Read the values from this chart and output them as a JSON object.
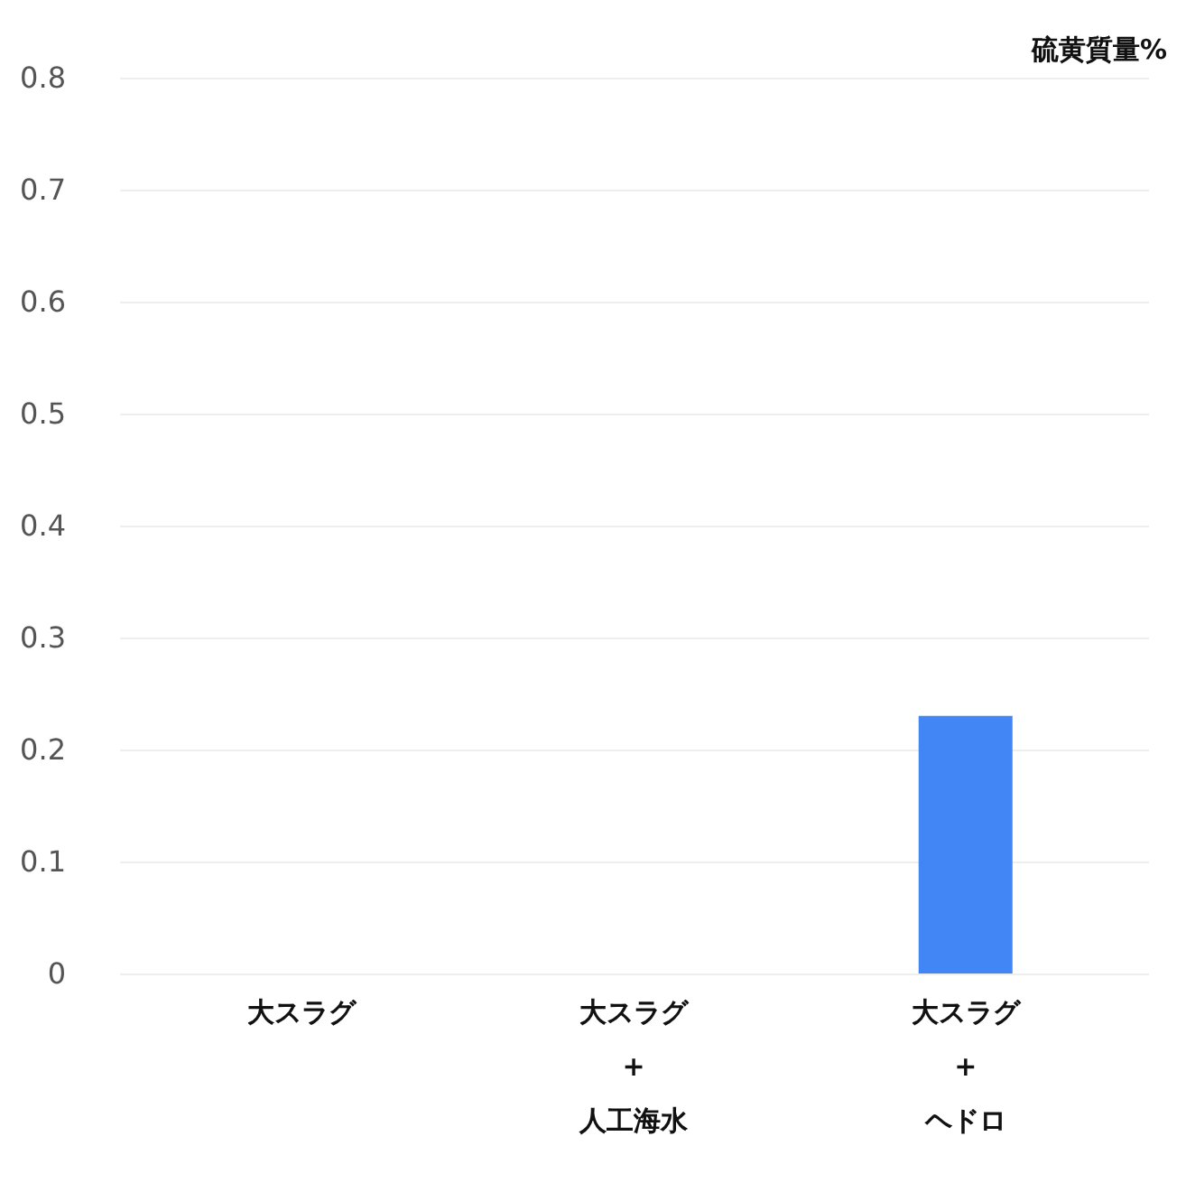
{
  "chart_data": {
    "type": "bar",
    "ylabel": "硫黄質量%",
    "categories": [
      "大スラグ",
      "大スラグ\n+\n人工海水",
      "大スラグ\n+\nヘドロ"
    ],
    "values": [
      0,
      0,
      0.23
    ],
    "color": "#4285f4",
    "ylim": [
      0,
      0.8
    ],
    "yticks": [
      0,
      0.1,
      0.2,
      0.3,
      0.4,
      0.5,
      0.6,
      0.7,
      0.8
    ],
    "grid": "y"
  }
}
